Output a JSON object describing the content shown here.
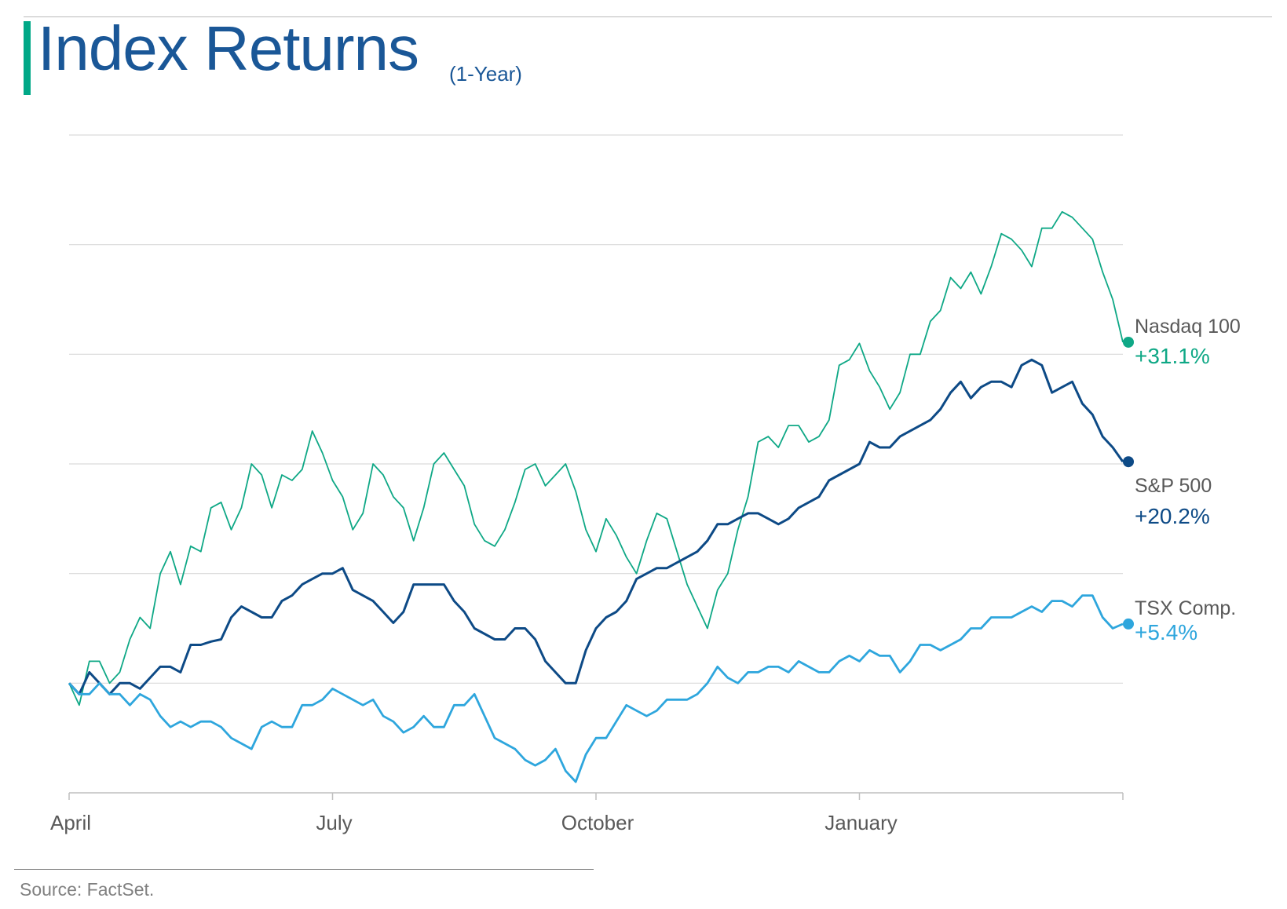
{
  "header": {
    "title": "Index Returns",
    "subtitle": "(1-Year)"
  },
  "source": "Source: FactSet.",
  "colors": {
    "nasdaq": "#0fa886",
    "sp500": "#0d4a86",
    "tsx": "#2ea6dd",
    "grid": "#d9d9d9",
    "axis": "#bfbfbf",
    "title": "#1a5797",
    "accent": "#00a887"
  },
  "chart_data": {
    "type": "line",
    "title": "Index Returns",
    "subtitle": "(1-Year)",
    "xlabel": "",
    "ylabel": "",
    "x_ticks": [
      "April",
      "July",
      "October",
      "January"
    ],
    "ylim": [
      -10,
      50
    ],
    "y_grid_step": 10,
    "grid": true,
    "y_tick_labels_shown": false,
    "legend": "end-of-line labels",
    "series": [
      {
        "name": "Nasdaq 100",
        "end_label": "+31.1%",
        "color": "#0fa886",
        "values": [
          0.0,
          -2.0,
          2.0,
          2.0,
          0.0,
          1.0,
          4.0,
          6.0,
          5.0,
          10.0,
          12.0,
          9.0,
          12.5,
          12.0,
          16.0,
          16.5,
          14.0,
          16.0,
          20.0,
          19.0,
          16.0,
          19.0,
          18.5,
          19.5,
          23.0,
          21.0,
          18.5,
          17.0,
          14.0,
          15.5,
          20.0,
          19.0,
          17.0,
          16.0,
          13.0,
          16.0,
          20.0,
          21.0,
          19.5,
          18.0,
          14.5,
          13.0,
          12.5,
          14.0,
          16.5,
          19.5,
          20.0,
          18.0,
          19.0,
          20.0,
          17.5,
          14.0,
          12.0,
          15.0,
          13.5,
          11.5,
          10.0,
          13.0,
          15.5,
          15.0,
          12.0,
          9.0,
          7.0,
          5.0,
          8.5,
          10.0,
          14.0,
          17.0,
          22.0,
          22.5,
          21.5,
          23.5,
          23.5,
          22.0,
          22.5,
          24.0,
          29.0,
          29.5,
          31.0,
          28.5,
          27.0,
          25.0,
          26.5,
          30.0,
          30.0,
          33.0,
          34.0,
          37.0,
          36.0,
          37.5,
          35.5,
          38.0,
          41.0,
          40.5,
          39.5,
          38.0,
          41.5,
          41.5,
          43.0,
          42.5,
          41.5,
          40.5,
          37.5,
          35.0,
          31.1
        ]
      },
      {
        "name": "S&P 500",
        "end_label": "+20.2%",
        "color": "#0d4a86",
        "values": [
          0.0,
          -1.0,
          1.0,
          0.0,
          -1.0,
          0.0,
          0.0,
          -0.5,
          0.5,
          1.5,
          1.5,
          1.0,
          3.5,
          3.5,
          3.8,
          4.0,
          6.0,
          7.0,
          6.5,
          6.0,
          6.0,
          7.5,
          8.0,
          9.0,
          9.5,
          10.0,
          10.0,
          10.5,
          8.5,
          8.0,
          7.5,
          6.5,
          5.5,
          6.5,
          9.0,
          9.0,
          9.0,
          9.0,
          7.5,
          6.5,
          5.0,
          4.5,
          4.0,
          4.0,
          5.0,
          5.0,
          4.0,
          2.0,
          1.0,
          0.0,
          0.0,
          3.0,
          5.0,
          6.0,
          6.5,
          7.5,
          9.5,
          10.0,
          10.5,
          10.5,
          11.0,
          11.5,
          12.0,
          13.0,
          14.5,
          14.5,
          15.0,
          15.5,
          15.5,
          15.0,
          14.5,
          15.0,
          16.0,
          16.5,
          17.0,
          18.5,
          19.0,
          19.5,
          20.0,
          22.0,
          21.5,
          21.5,
          22.5,
          23.0,
          23.5,
          24.0,
          25.0,
          26.5,
          27.5,
          26.0,
          27.0,
          27.5,
          27.5,
          27.0,
          29.0,
          29.5,
          29.0,
          26.5,
          27.0,
          27.5,
          25.5,
          24.5,
          22.5,
          21.5,
          20.2
        ]
      },
      {
        "name": "TSX Comp.",
        "end_label": "+5.4%",
        "color": "#2ea6dd",
        "values": [
          0.0,
          -1.0,
          -1.0,
          0.0,
          -1.0,
          -1.0,
          -2.0,
          -1.0,
          -1.5,
          -3.0,
          -4.0,
          -3.5,
          -4.0,
          -3.5,
          -3.5,
          -4.0,
          -5.0,
          -5.5,
          -6.0,
          -4.0,
          -3.5,
          -4.0,
          -4.0,
          -2.0,
          -2.0,
          -1.5,
          -0.5,
          -1.0,
          -1.5,
          -2.0,
          -1.5,
          -3.0,
          -3.5,
          -4.5,
          -4.0,
          -3.0,
          -4.0,
          -4.0,
          -2.0,
          -2.0,
          -1.0,
          -3.0,
          -5.0,
          -5.5,
          -6.0,
          -7.0,
          -7.5,
          -7.0,
          -6.0,
          -8.0,
          -9.0,
          -6.5,
          -5.0,
          -5.0,
          -3.5,
          -2.0,
          -2.5,
          -3.0,
          -2.5,
          -1.5,
          -1.5,
          -1.5,
          -1.0,
          0.0,
          1.5,
          0.5,
          0.0,
          1.0,
          1.0,
          1.5,
          1.5,
          1.0,
          2.0,
          1.5,
          1.0,
          1.0,
          2.0,
          2.5,
          2.0,
          3.0,
          2.5,
          2.5,
          1.0,
          2.0,
          3.5,
          3.5,
          3.0,
          3.5,
          4.0,
          5.0,
          5.0,
          6.0,
          6.0,
          6.0,
          6.5,
          7.0,
          6.5,
          7.5,
          7.5,
          7.0,
          8.0,
          8.0,
          6.0,
          5.0,
          5.4
        ]
      }
    ]
  }
}
